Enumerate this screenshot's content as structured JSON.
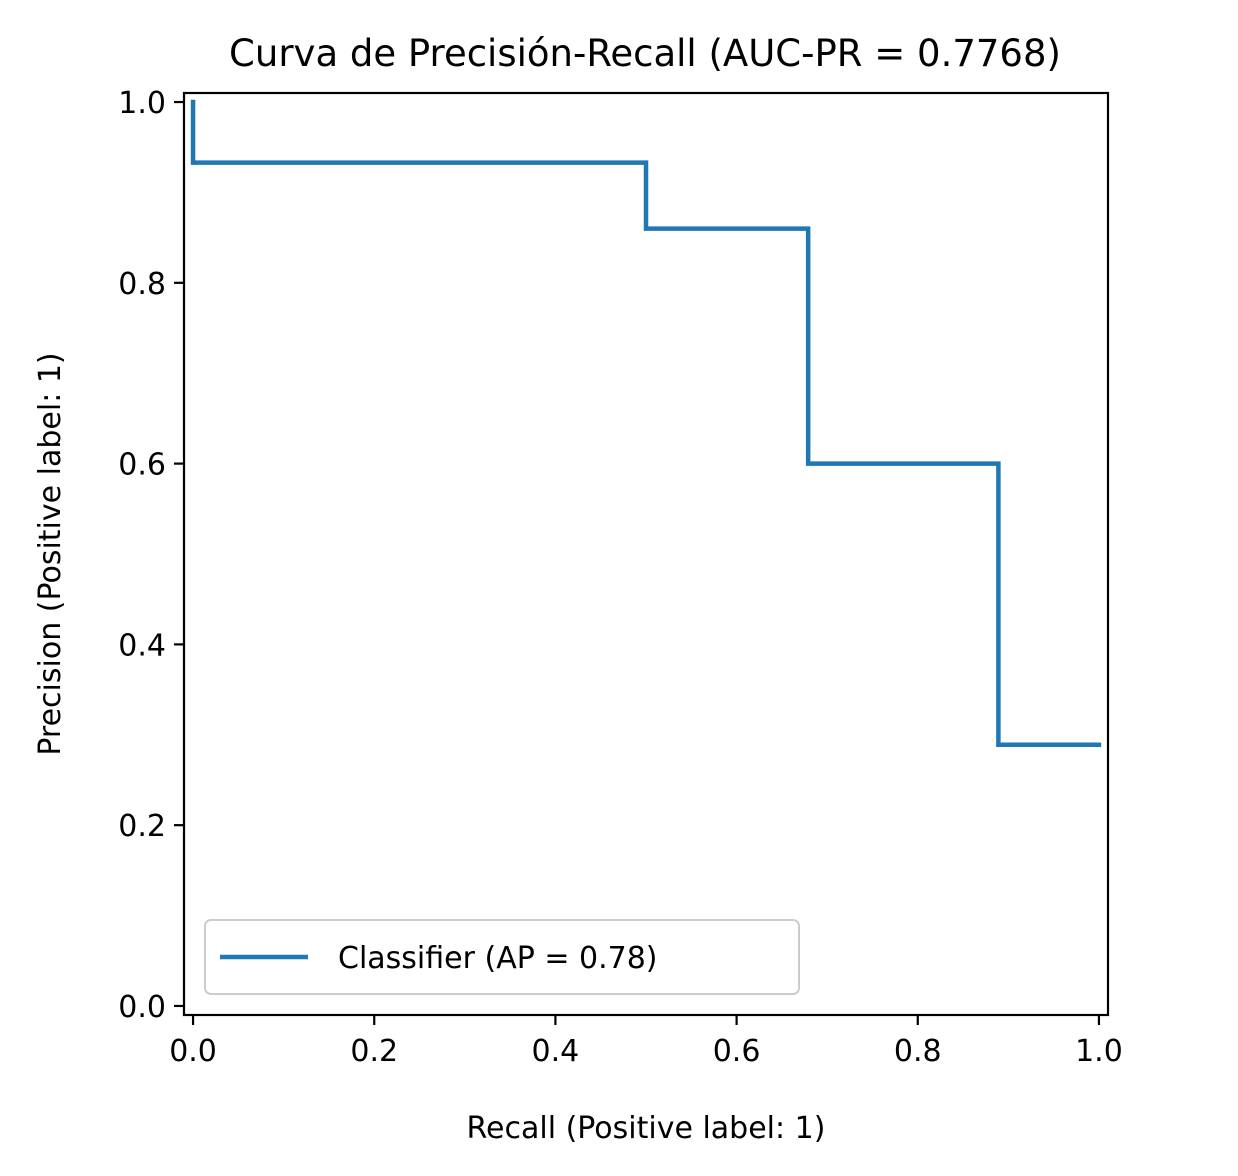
{
  "chart_data": {
    "type": "line",
    "title": "Curva de Precisión-Recall (AUC-PR = 0.7768)",
    "xlabel": "Recall (Positive label: 1)",
    "ylabel": "Precision (Positive label: 1)",
    "xlim": [
      -0.01,
      1.01
    ],
    "ylim": [
      -0.01,
      1.01
    ],
    "xticks": [
      "0.0",
      "0.2",
      "0.4",
      "0.6",
      "0.8",
      "1.0"
    ],
    "yticks": [
      "0.0",
      "0.2",
      "0.4",
      "0.6",
      "0.8",
      "1.0"
    ],
    "grid": false,
    "legend_position": "lower-left",
    "series": [
      {
        "name": "Classifier (AP = 0.78)",
        "color": "#1f77b4",
        "drawstyle": "steps-post",
        "x": [
          0.0,
          0.0,
          0.5,
          0.5,
          0.679,
          0.679,
          0.889,
          0.889,
          1.0
        ],
        "y": [
          1.0,
          0.933,
          0.933,
          0.86,
          0.86,
          0.6,
          0.6,
          0.289,
          0.289
        ]
      }
    ]
  }
}
